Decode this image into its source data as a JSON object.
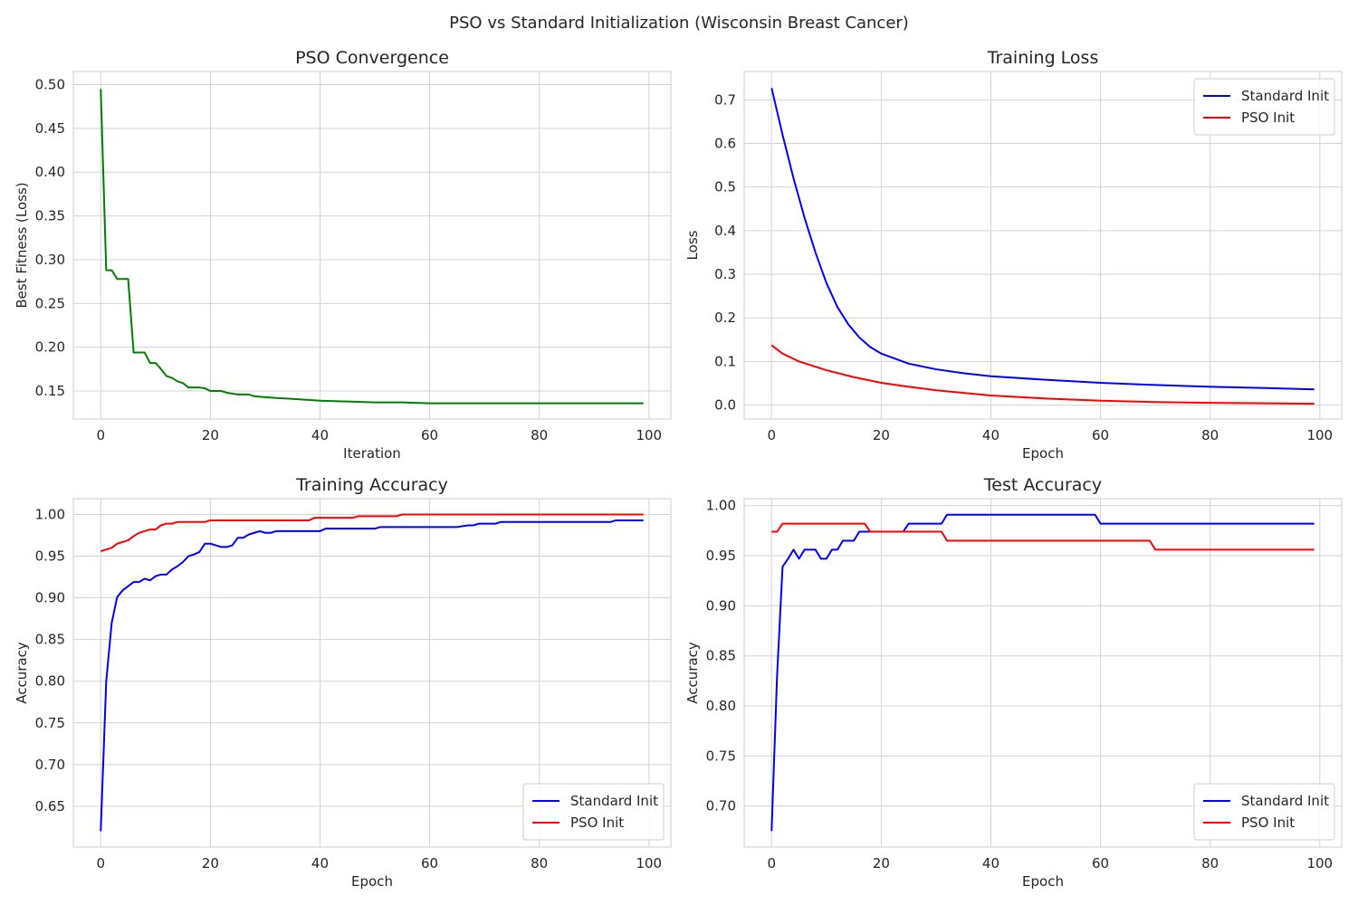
{
  "figure": {
    "suptitle": "PSO vs Standard Initialization (Wisconsin Breast Cancer)",
    "grid": true,
    "colors": {
      "standard": "#0000ff",
      "pso": "#ff0000",
      "convergence": "#008000",
      "grid": "#d3d3d3",
      "frame": "#cccccc"
    }
  },
  "chart_data": [
    {
      "id": "pso_convergence",
      "type": "line",
      "title": "PSO Convergence",
      "xlabel": "Iteration",
      "ylabel": "Best Fitness (Loss)",
      "xlim": [
        -5,
        104
      ],
      "ylim": [
        0.118,
        0.515
      ],
      "xticks": [
        0,
        20,
        40,
        60,
        80,
        100
      ],
      "yticks": [
        0.15,
        0.2,
        0.25,
        0.3,
        0.35,
        0.4,
        0.45,
        0.5
      ],
      "ytick_labels": [
        "0.15",
        "0.20",
        "0.25",
        "0.30",
        "0.35",
        "0.40",
        "0.45",
        "0.50"
      ],
      "legend": null,
      "series": [
        {
          "color": "#008000",
          "points": [
            [
              0,
              0.495
            ],
            [
              1,
              0.288
            ],
            [
              2,
              0.288
            ],
            [
              3,
              0.278
            ],
            [
              4,
              0.278
            ],
            [
              5,
              0.278
            ],
            [
              6,
              0.194
            ],
            [
              7,
              0.194
            ],
            [
              8,
              0.194
            ],
            [
              9,
              0.182
            ],
            [
              10,
              0.182
            ],
            [
              11,
              0.175
            ],
            [
              12,
              0.167
            ],
            [
              13,
              0.165
            ],
            [
              14,
              0.161
            ],
            [
              15,
              0.159
            ],
            [
              16,
              0.154
            ],
            [
              17,
              0.154
            ],
            [
              18,
              0.154
            ],
            [
              19,
              0.153
            ],
            [
              20,
              0.15
            ],
            [
              21,
              0.15
            ],
            [
              22,
              0.15
            ],
            [
              23,
              0.148
            ],
            [
              24,
              0.147
            ],
            [
              25,
              0.146
            ],
            [
              26,
              0.146
            ],
            [
              27,
              0.146
            ],
            [
              28,
              0.144
            ],
            [
              30,
              0.143
            ],
            [
              32,
              0.142
            ],
            [
              35,
              0.141
            ],
            [
              40,
              0.139
            ],
            [
              45,
              0.138
            ],
            [
              50,
              0.137
            ],
            [
              55,
              0.137
            ],
            [
              60,
              0.136
            ],
            [
              70,
              0.136
            ],
            [
              80,
              0.136
            ],
            [
              90,
              0.136
            ],
            [
              99,
              0.136
            ]
          ]
        }
      ]
    },
    {
      "id": "training_loss",
      "type": "line",
      "title": "Training Loss",
      "xlabel": "Epoch",
      "ylabel": "Loss",
      "xlim": [
        -5,
        104
      ],
      "ylim": [
        -0.032,
        0.765
      ],
      "xticks": [
        0,
        20,
        40,
        60,
        80,
        100
      ],
      "yticks": [
        0.0,
        0.1,
        0.2,
        0.3,
        0.4,
        0.5,
        0.6,
        0.7
      ],
      "ytick_labels": [
        "0.0",
        "0.1",
        "0.2",
        "0.3",
        "0.4",
        "0.5",
        "0.6",
        "0.7"
      ],
      "legend": "top-right",
      "series": [
        {
          "name": "Standard Init",
          "color": "#0000ff",
          "points": [
            [
              0,
              0.727
            ],
            [
              2,
              0.62
            ],
            [
              4,
              0.52
            ],
            [
              6,
              0.43
            ],
            [
              8,
              0.35
            ],
            [
              10,
              0.28
            ],
            [
              12,
              0.225
            ],
            [
              14,
              0.185
            ],
            [
              16,
              0.155
            ],
            [
              18,
              0.133
            ],
            [
              20,
              0.118
            ],
            [
              25,
              0.095
            ],
            [
              30,
              0.082
            ],
            [
              35,
              0.073
            ],
            [
              40,
              0.066
            ],
            [
              50,
              0.058
            ],
            [
              60,
              0.051
            ],
            [
              70,
              0.046
            ],
            [
              80,
              0.042
            ],
            [
              90,
              0.039
            ],
            [
              99,
              0.036
            ]
          ]
        },
        {
          "name": "PSO Init",
          "color": "#ff0000",
          "points": [
            [
              0,
              0.137
            ],
            [
              2,
              0.118
            ],
            [
              5,
              0.1
            ],
            [
              10,
              0.08
            ],
            [
              15,
              0.064
            ],
            [
              20,
              0.051
            ],
            [
              25,
              0.042
            ],
            [
              30,
              0.034
            ],
            [
              40,
              0.022
            ],
            [
              50,
              0.015
            ],
            [
              60,
              0.01
            ],
            [
              70,
              0.007
            ],
            [
              80,
              0.005
            ],
            [
              90,
              0.004
            ],
            [
              99,
              0.003
            ]
          ]
        }
      ]
    },
    {
      "id": "training_accuracy",
      "type": "line",
      "title": "Training Accuracy",
      "xlabel": "Epoch",
      "ylabel": "Accuracy",
      "xlim": [
        -5,
        104
      ],
      "ylim": [
        0.601,
        1.019
      ],
      "xticks": [
        0,
        20,
        40,
        60,
        80,
        100
      ],
      "yticks": [
        0.65,
        0.7,
        0.75,
        0.8,
        0.85,
        0.9,
        0.95,
        1.0
      ],
      "ytick_labels": [
        "0.65",
        "0.70",
        "0.75",
        "0.80",
        "0.85",
        "0.90",
        "0.95",
        "1.00"
      ],
      "legend": "bottom-right",
      "series": [
        {
          "name": "Standard Init",
          "color": "#0000ff",
          "points": [
            [
              0,
              0.62
            ],
            [
              1,
              0.8
            ],
            [
              2,
              0.87
            ],
            [
              3,
              0.901
            ],
            [
              4,
              0.909
            ],
            [
              5,
              0.914
            ],
            [
              6,
              0.919
            ],
            [
              7,
              0.919
            ],
            [
              8,
              0.923
            ],
            [
              9,
              0.921
            ],
            [
              10,
              0.926
            ],
            [
              11,
              0.928
            ],
            [
              12,
              0.928
            ],
            [
              13,
              0.934
            ],
            [
              14,
              0.938
            ],
            [
              15,
              0.943
            ],
            [
              16,
              0.95
            ],
            [
              17,
              0.952
            ],
            [
              18,
              0.955
            ],
            [
              19,
              0.965
            ],
            [
              20,
              0.965
            ],
            [
              21,
              0.963
            ],
            [
              22,
              0.961
            ],
            [
              23,
              0.961
            ],
            [
              24,
              0.963
            ],
            [
              25,
              0.972
            ],
            [
              26,
              0.972
            ],
            [
              27,
              0.976
            ],
            [
              28,
              0.978
            ],
            [
              29,
              0.98
            ],
            [
              30,
              0.978
            ],
            [
              31,
              0.978
            ],
            [
              32,
              0.98
            ],
            [
              40,
              0.98
            ],
            [
              41,
              0.983
            ],
            [
              50,
              0.983
            ],
            [
              51,
              0.985
            ],
            [
              65,
              0.985
            ],
            [
              67,
              0.987
            ],
            [
              68,
              0.987
            ],
            [
              69,
              0.989
            ],
            [
              72,
              0.989
            ],
            [
              73,
              0.991
            ],
            [
              93,
              0.991
            ],
            [
              94,
              0.993
            ],
            [
              99,
              0.993
            ]
          ]
        },
        {
          "name": "PSO Init",
          "color": "#ff0000",
          "points": [
            [
              0,
              0.956
            ],
            [
              2,
              0.96
            ],
            [
              3,
              0.965
            ],
            [
              5,
              0.969
            ],
            [
              6,
              0.974
            ],
            [
              7,
              0.978
            ],
            [
              8,
              0.98
            ],
            [
              9,
              0.982
            ],
            [
              10,
              0.982
            ],
            [
              11,
              0.987
            ],
            [
              12,
              0.989
            ],
            [
              13,
              0.989
            ],
            [
              14,
              0.991
            ],
            [
              19,
              0.991
            ],
            [
              20,
              0.993
            ],
            [
              38,
              0.993
            ],
            [
              39,
              0.996
            ],
            [
              46,
              0.996
            ],
            [
              47,
              0.998
            ],
            [
              54,
              0.998
            ],
            [
              55,
              1.0
            ],
            [
              99,
              1.0
            ]
          ]
        }
      ]
    },
    {
      "id": "test_accuracy",
      "type": "line",
      "title": "Test Accuracy",
      "xlabel": "Epoch",
      "ylabel": "Accuracy",
      "xlim": [
        -5,
        104
      ],
      "ylim": [
        0.659,
        1.007
      ],
      "xticks": [
        0,
        20,
        40,
        60,
        80,
        100
      ],
      "yticks": [
        0.7,
        0.75,
        0.8,
        0.85,
        0.9,
        0.95,
        1.0
      ],
      "ytick_labels": [
        "0.70",
        "0.75",
        "0.80",
        "0.85",
        "0.90",
        "0.95",
        "1.00"
      ],
      "legend": "bottom-right",
      "series": [
        {
          "name": "Standard Init",
          "color": "#0000ff",
          "points": [
            [
              0,
              0.675
            ],
            [
              1,
              0.83
            ],
            [
              2,
              0.939
            ],
            [
              3,
              0.947
            ],
            [
              4,
              0.956
            ],
            [
              5,
              0.947
            ],
            [
              6,
              0.956
            ],
            [
              7,
              0.956
            ],
            [
              8,
              0.956
            ],
            [
              9,
              0.947
            ],
            [
              10,
              0.947
            ],
            [
              11,
              0.956
            ],
            [
              12,
              0.956
            ],
            [
              13,
              0.965
            ],
            [
              14,
              0.965
            ],
            [
              15,
              0.965
            ],
            [
              16,
              0.974
            ],
            [
              24,
              0.974
            ],
            [
              25,
              0.982
            ],
            [
              31,
              0.982
            ],
            [
              32,
              0.991
            ],
            [
              59,
              0.991
            ],
            [
              60,
              0.982
            ],
            [
              99,
              0.982
            ]
          ]
        },
        {
          "name": "PSO Init",
          "color": "#ff0000",
          "points": [
            [
              0,
              0.974
            ],
            [
              1,
              0.974
            ],
            [
              2,
              0.982
            ],
            [
              17,
              0.982
            ],
            [
              18,
              0.974
            ],
            [
              31,
              0.974
            ],
            [
              32,
              0.965
            ],
            [
              69,
              0.965
            ],
            [
              70,
              0.956
            ],
            [
              99,
              0.956
            ]
          ]
        }
      ]
    }
  ]
}
